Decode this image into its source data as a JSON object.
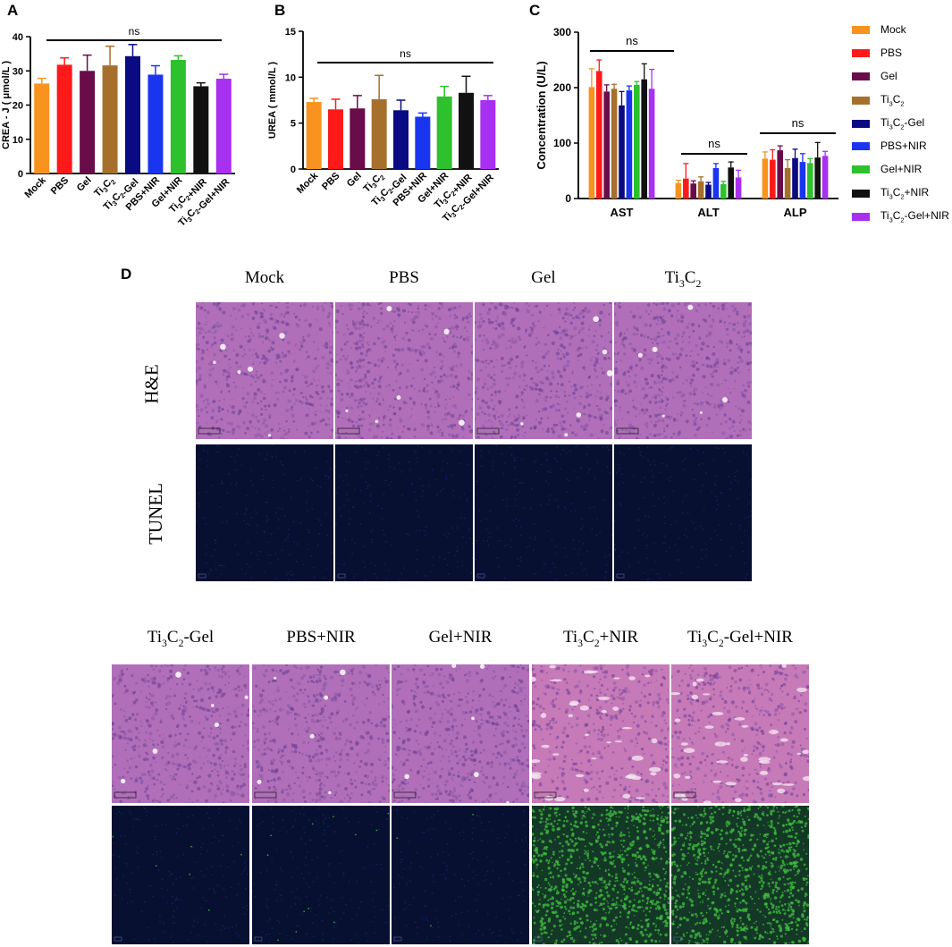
{
  "groups": [
    "Mock",
    "PBS",
    "Gel",
    "Ti3C2",
    "Ti3C2-Gel",
    "PBS+NIR",
    "Gel+NIR",
    "Ti3C2+NIR",
    "Ti3C2-Gel+NIR"
  ],
  "group_colors": [
    "#F7931E",
    "#FF1A1A",
    "#6A0B4A",
    "#A6702C",
    "#0A0A82",
    "#1A35F0",
    "#2DC12D",
    "#111111",
    "#A830F0"
  ],
  "panels": {
    "a": "A",
    "b": "B",
    "c": "C",
    "d": "D"
  },
  "ns_label": "ns",
  "chart_data": [
    {
      "id": "A",
      "type": "bar",
      "categories": [
        "Mock",
        "PBS",
        "Gel",
        "Ti3C2",
        "Ti3C2-Gel",
        "PBS+NIR",
        "Gel+NIR",
        "Ti3C2+NIR",
        "Ti3C2-Gel+NIR"
      ],
      "values": [
        26.3,
        31.8,
        30.0,
        31.6,
        34.3,
        28.9,
        33.2,
        25.5,
        27.7
      ],
      "errors": [
        1.5,
        2.0,
        4.6,
        5.6,
        3.4,
        2.6,
        1.2,
        1.0,
        1.3
      ],
      "ylabel": "CREA - J ( μmol/L )",
      "ylim": [
        0,
        40
      ],
      "yticks": [
        0,
        10,
        20,
        30,
        40
      ],
      "annotation": "ns"
    },
    {
      "id": "B",
      "type": "bar",
      "categories": [
        "Mock",
        "PBS",
        "Gel",
        "Ti3C2",
        "Ti3C2-Gel",
        "PBS+NIR",
        "Gel+NIR",
        "Ti3C2+NIR",
        "Ti3C2-Gel+NIR"
      ],
      "values": [
        7.3,
        6.5,
        6.6,
        7.6,
        6.4,
        5.7,
        7.9,
        8.3,
        7.5
      ],
      "errors": [
        0.4,
        1.1,
        1.4,
        2.6,
        1.1,
        0.4,
        1.1,
        1.8,
        0.5
      ],
      "ylabel": "UREA ( mmol/L )",
      "ylim": [
        0,
        15
      ],
      "yticks": [
        0,
        5,
        10,
        15
      ],
      "annotation": "ns"
    },
    {
      "id": "C",
      "type": "bar",
      "categories": [
        "AST",
        "ALT",
        "ALP"
      ],
      "series": [
        {
          "name": "Mock",
          "values": [
            201,
            28,
            72
          ],
          "errors": [
            33,
            5,
            12
          ]
        },
        {
          "name": "PBS",
          "values": [
            230,
            36,
            70
          ],
          "errors": [
            20,
            27,
            18
          ]
        },
        {
          "name": "Gel",
          "values": [
            193,
            27,
            87
          ],
          "errors": [
            12,
            5,
            8
          ]
        },
        {
          "name": "Ti3C2",
          "values": [
            198,
            31,
            55
          ],
          "errors": [
            8,
            8,
            15
          ]
        },
        {
          "name": "Ti3C2-Gel",
          "values": [
            168,
            25,
            73
          ],
          "errors": [
            25,
            4,
            16
          ]
        },
        {
          "name": "PBS+NIR",
          "values": [
            195,
            55,
            66
          ],
          "errors": [
            8,
            8,
            15
          ]
        },
        {
          "name": "Gel+NIR",
          "values": [
            205,
            26,
            64
          ],
          "errors": [
            6,
            5,
            8
          ]
        },
        {
          "name": "Ti3C2+NIR",
          "values": [
            215,
            56,
            74
          ],
          "errors": [
            28,
            10,
            27
          ]
        },
        {
          "name": "Ti3C2-Gel+NIR",
          "values": [
            198,
            38,
            77
          ],
          "errors": [
            35,
            13,
            8
          ]
        }
      ],
      "ylabel": "Concentration (U/L)",
      "ylim": [
        0,
        300
      ],
      "yticks": [
        0,
        100,
        200,
        300
      ],
      "annotations": [
        "ns",
        "ns",
        "ns"
      ],
      "legend": "right"
    }
  ],
  "histology": {
    "row_labels": [
      "H&E",
      "TUNEL"
    ],
    "top_columns": [
      "Mock",
      "PBS",
      "Gel",
      "Ti3C2"
    ],
    "bottom_columns": [
      "Ti3C2-Gel",
      "PBS+NIR",
      "Gel+NIR",
      "Ti3C2+NIR",
      "Ti3C2-Gel+NIR"
    ],
    "he_color": "#B06FB8",
    "he_dark": "#6A3C93",
    "tunel_color": "#071030",
    "tunel_positive": "#3FBF3F",
    "tunel_positive_level": [
      0,
      0,
      0,
      0,
      0.02,
      0.04,
      0.01,
      0.75,
      0.7
    ]
  }
}
